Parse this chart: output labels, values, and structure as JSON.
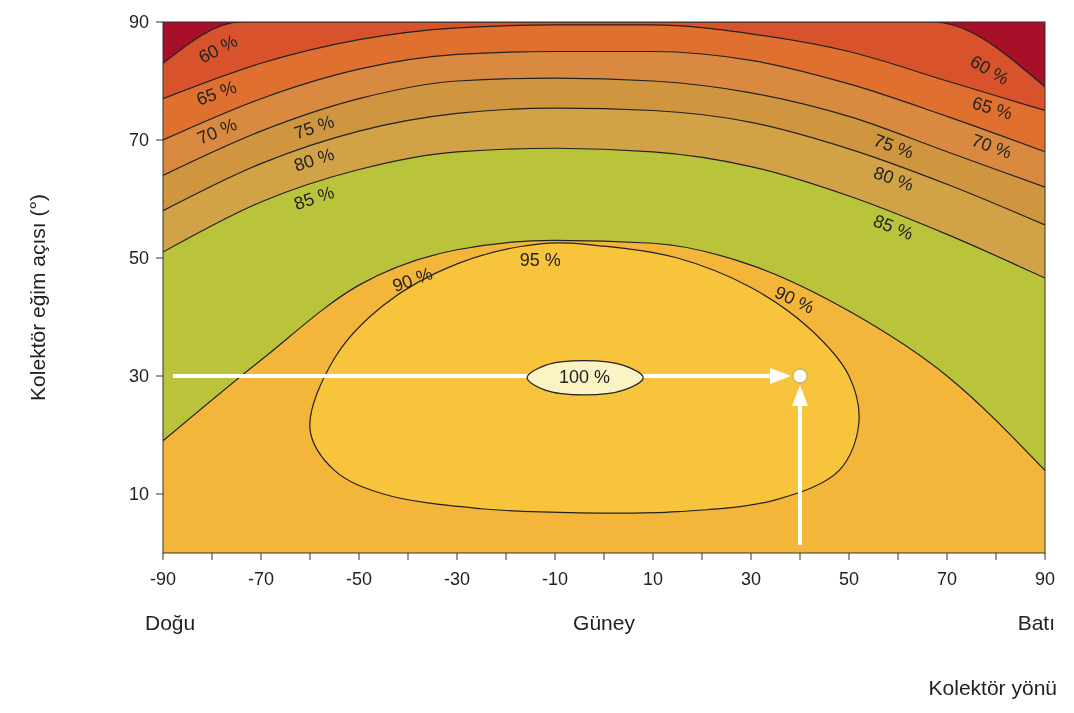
{
  "chart_data": {
    "type": "area",
    "xlabel": "Kolektör yönü",
    "ylabel": "Kolektör eğim açısı (°)",
    "xlim": [
      -90,
      90
    ],
    "ylim": [
      0,
      90
    ],
    "xticks": [
      -90,
      {
        "value": -80,
        "label": null
      },
      -70,
      {
        "value": -60,
        "label": null
      },
      -50,
      {
        "value": -40,
        "label": null
      },
      -30,
      {
        "value": -20,
        "label": null
      },
      -10,
      {
        "value": 0,
        "label": null
      },
      10,
      {
        "value": 20,
        "label": null
      },
      30,
      {
        "value": 40,
        "label": null
      },
      50,
      {
        "value": 60,
        "label": null
      },
      70,
      {
        "value": 80,
        "label": null
      },
      90
    ],
    "yticks": [
      10,
      30,
      50,
      70,
      90
    ],
    "annotations": [
      "Doğu",
      "Güney",
      "Batı"
    ],
    "bands": [
      {
        "axis": "y",
        "from": 78,
        "to": 90,
        "color": "#a8102a"
      }
    ],
    "series": [
      {
        "name": "60 %",
        "color": "#d8532c",
        "x": [
          -90,
          -74,
          67,
          90
        ],
        "values": [
          83,
          90,
          90,
          79
        ]
      },
      {
        "name": "65 %",
        "color": "#e0702f",
        "x": [
          -90,
          -70,
          -50,
          -30,
          -10,
          10,
          30,
          50,
          70,
          90
        ],
        "values": [
          77,
          83,
          87,
          89,
          89.5,
          89.5,
          88,
          85,
          80,
          75
        ]
      },
      {
        "name": "70 %",
        "color": "#d98a40",
        "x": [
          -90,
          -70,
          -50,
          -30,
          -10,
          10,
          30,
          50,
          70,
          90
        ],
        "values": [
          70,
          77,
          82,
          84.5,
          85,
          85,
          83.5,
          79.5,
          74,
          68
        ]
      },
      {
        "name": "75 %",
        "color": "#cf963f",
        "x": [
          -90,
          -70,
          -50,
          -30,
          -10,
          10,
          30,
          50,
          70,
          90
        ],
        "values": [
          64,
          71.5,
          77,
          80,
          80.5,
          80,
          78,
          74,
          68,
          62
        ]
      },
      {
        "name": "80 %",
        "color": "#d2a246",
        "x": [
          -90,
          -70,
          -50,
          -30,
          -10,
          10,
          30,
          50,
          70,
          90
        ],
        "values": [
          58,
          66,
          71.5,
          74.5,
          75.4,
          75,
          73,
          68.5,
          62.5,
          55.6
        ]
      },
      {
        "name": "85 %",
        "color": "#b9c43b",
        "x": [
          -90,
          -70,
          -50,
          -30,
          -10,
          10,
          30,
          50,
          70,
          90
        ],
        "values": [
          51,
          59.5,
          65,
          68,
          68.6,
          68,
          65.5,
          60.5,
          54,
          46.6
        ]
      },
      {
        "name": "90 %",
        "color": "#f4b63a",
        "x": [
          -90,
          -70,
          -50,
          -30,
          -10,
          10,
          30,
          50,
          70,
          90
        ],
        "values": [
          19,
          32.7,
          45.4,
          51.4,
          53,
          52.5,
          48.8,
          41,
          30,
          14
        ]
      },
      {
        "name": "95 %",
        "color": "#f8c43c",
        "x": [
          -60,
          -55,
          -45,
          -30,
          -13,
          0,
          15,
          30,
          42,
          50,
          52,
          48,
          35,
          15,
          -5,
          -25,
          -45,
          -55,
          -60
        ],
        "values": [
          21,
          33,
          42,
          49,
          52.4,
          52,
          50,
          45,
          38,
          30,
          22,
          14,
          9,
          7,
          6.8,
          7.5,
          10,
          14,
          21
        ]
      },
      {
        "name": "100 %",
        "color": "#fbf3c4",
        "x": [
          -15.7,
          -12,
          -4,
          4,
          8,
          4,
          -4,
          -12,
          -15.7
        ],
        "values": [
          29.7,
          31.8,
          32.6,
          31.8,
          29.7,
          27.6,
          26.8,
          27.6,
          29.7
        ]
      },
      {
        "type": "scatter",
        "color": "#ffffff",
        "x": [
          40
        ],
        "values": [
          30
        ],
        "marker": "circle"
      }
    ]
  }
}
